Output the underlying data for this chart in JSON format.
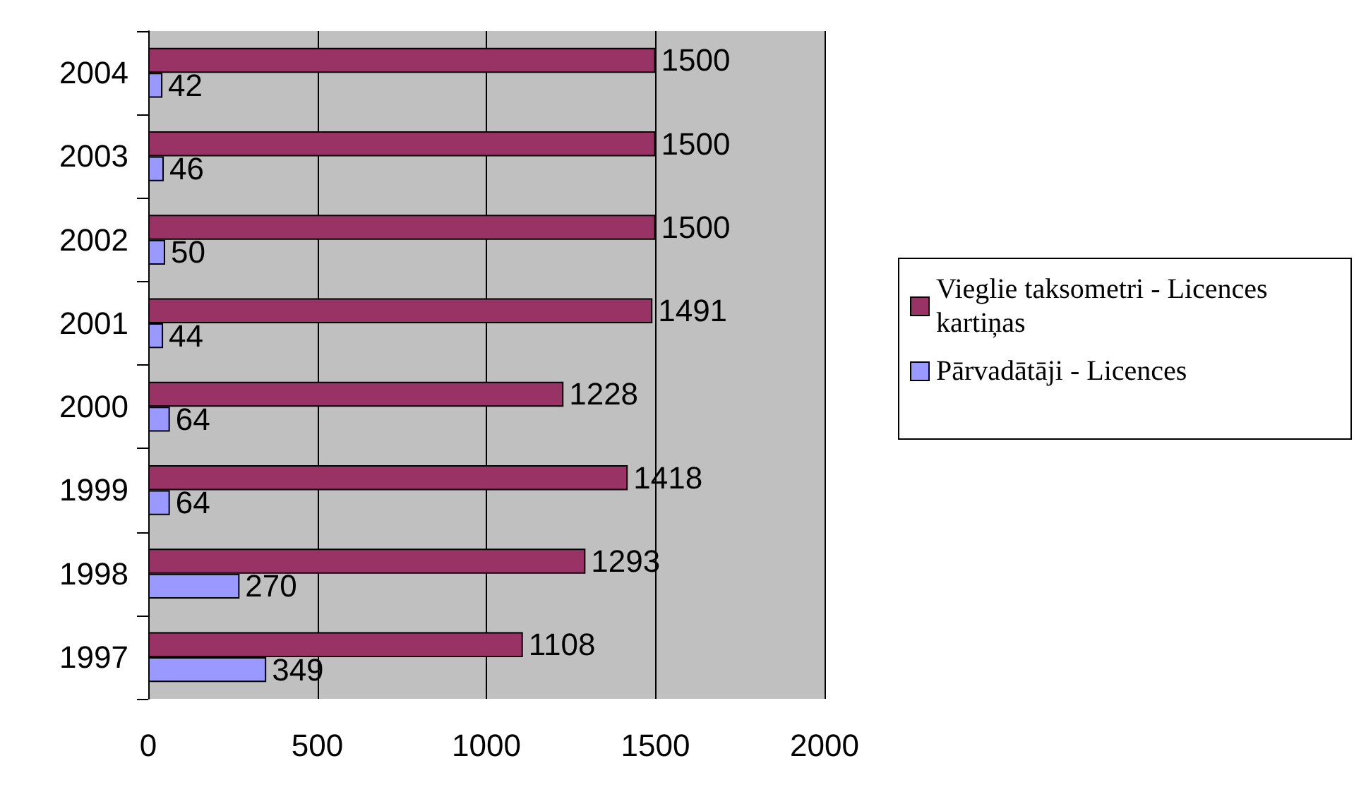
{
  "chart_data": {
    "type": "bar",
    "orientation": "horizontal",
    "categories": [
      "2004",
      "2003",
      "2002",
      "2001",
      "2000",
      "1999",
      "1998",
      "1997"
    ],
    "series": [
      {
        "name": "Vieglie taksometri - Licences kartiņas",
        "color": "#993366",
        "values": [
          1500,
          1500,
          1500,
          1491,
          1228,
          1418,
          1293,
          1108
        ]
      },
      {
        "name": "Pārvadātāji - Licences",
        "color": "#9999ff",
        "values": [
          42,
          46,
          50,
          44,
          64,
          64,
          270,
          349
        ]
      }
    ],
    "xlim": [
      0,
      2000
    ],
    "xticks": [
      0,
      500,
      1000,
      1500,
      2000
    ],
    "grid": "x",
    "legend": "right",
    "data_labels": true
  }
}
